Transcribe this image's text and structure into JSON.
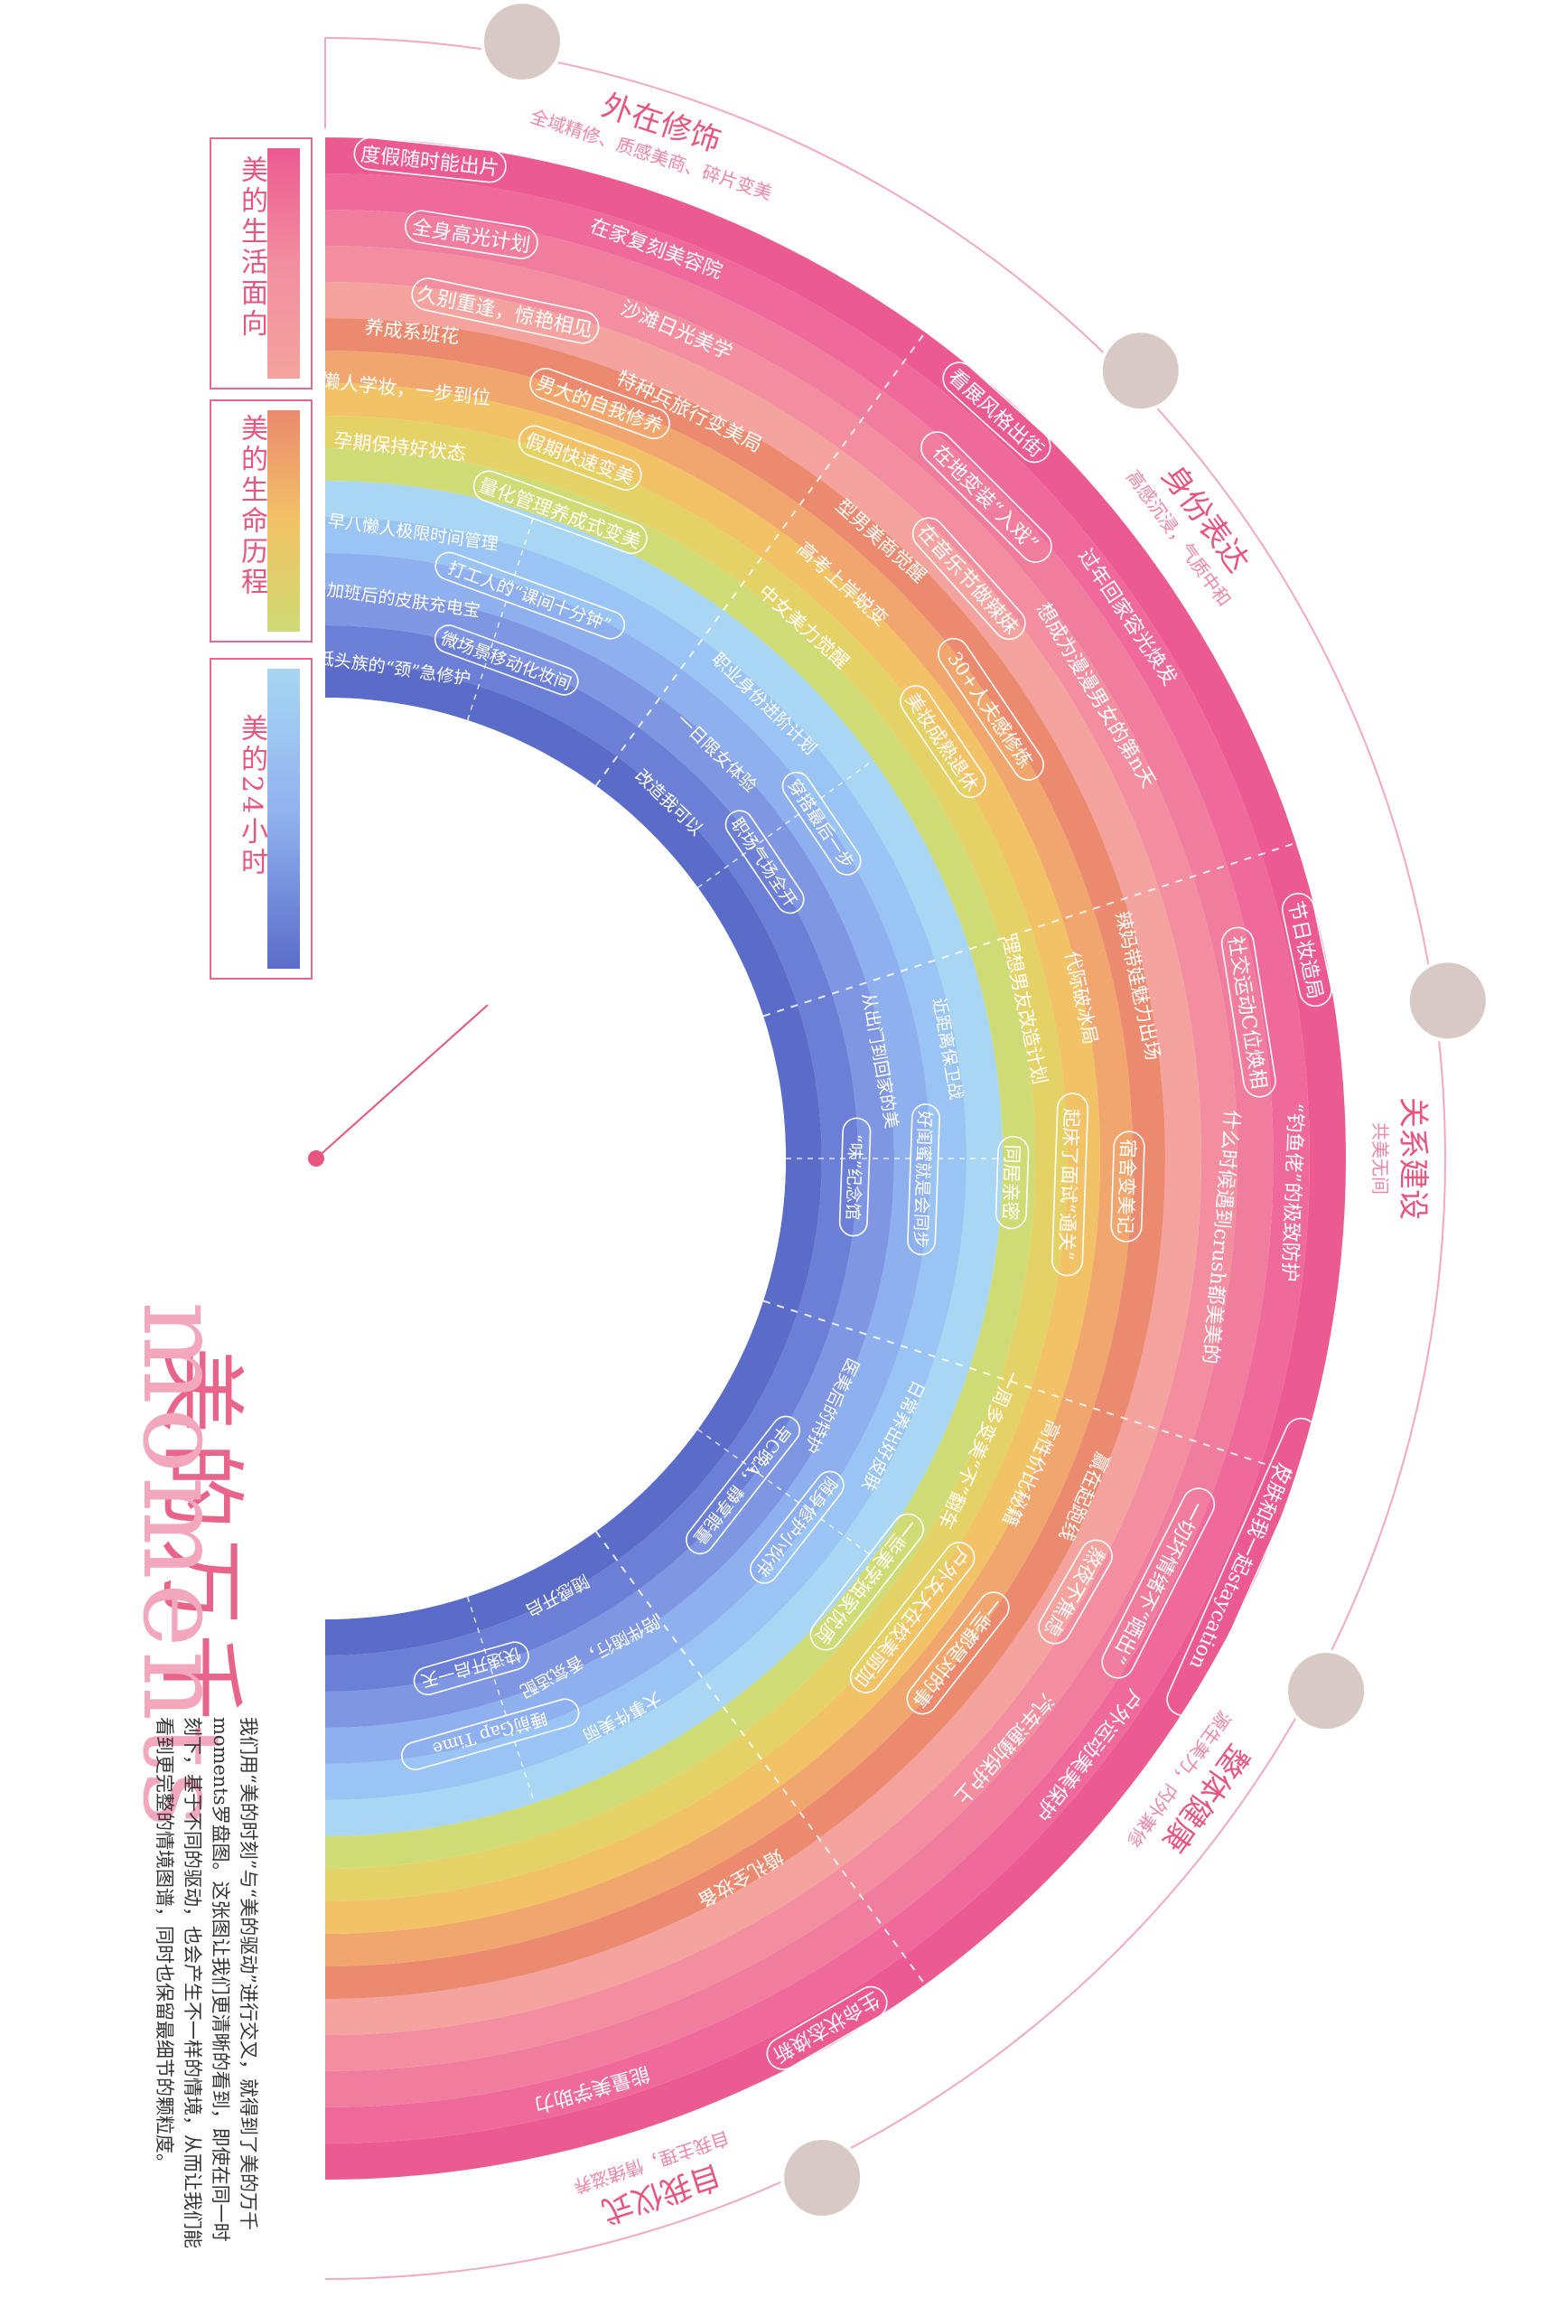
{
  "title": {
    "cn": "美的万千",
    "en": "moments"
  },
  "description": "我们用“美的时刻”与“美的驱动”进行交叉，就得到了美的万千moments罗盘图。这张图让我们更清晰的看到，即使在同一时刻下，基于不同的驱动，也会产生不一样的情境，从而让我们能看到更完整的情境图谱，同时也保留最细节的颗粒度。",
  "legend": [
    {
      "label": "美的生活面向"
    },
    {
      "label": "美的生命历程"
    },
    {
      "label": "美的24小时"
    }
  ],
  "colors": {
    "outer": [
      "#ec5a92",
      "#ef6a9b",
      "#f07c9e",
      "#f28e9f",
      "#f4a39f"
    ],
    "middle": [
      "#eb8a6e",
      "#f0a66d",
      "#f2c266",
      "#e5d266",
      "#cfdb74"
    ],
    "inner": [
      "#a8d6f3",
      "#99c4f3",
      "#8fb0ee",
      "#7f96e3",
      "#6b7fd6",
      "#5a6cc8"
    ],
    "accent": "#e8557f"
  },
  "sectors": [
    {
      "title": "外在修饰",
      "subtitle": "全域精修、质感美商、碎片变美"
    },
    {
      "title": "身份表达",
      "subtitle": "高感沉浸，气质中和"
    },
    {
      "title": "关系建设",
      "subtitle": "共美无间"
    },
    {
      "title": "整体健康",
      "subtitle": "源生美力，内外兼修"
    },
    {
      "title": "自我仪式",
      "subtitle": "自我主理，情绪滋养"
    }
  ],
  "outer_labels": [
    [
      "度假随时能出片",
      "在家复刻美容院",
      "全身高光计划",
      "沙滩日光美学",
      "久别重逢，惊艳相见",
      "特种兵旅行变美局"
    ],
    [
      "看展风格出街",
      "过年回家容光焕发",
      "在地变装“入戏”",
      "想成为漫漫男女的第n天",
      "在音乐节做辣妹"
    ],
    [
      "节日妆造局",
      "“钓鱼佬”的极致防护",
      "社交运动C位焕相",
      "什么时候遇到crush都美美的"
    ],
    [
      "皮肤和我一起staycation",
      "户外运动美美保护",
      "一切坏情绪不“晒出”",
      "汽车通勤保护上",
      "熬夜不焦虑"
    ],
    [
      "生命状态焕新",
      "能量美学助力"
    ]
  ],
  "middle_labels": [
    [
      "养成系班花",
      "男大的自我修养",
      "懒人学妆，一步到位",
      "假期快速变美",
      "孕期保持好状态",
      "量化管理养成式变美"
    ],
    [
      "型男美商觉醒",
      "30+人夫感修炼",
      "高考上岸蜕变",
      "美妆成熟退休",
      "中女美力觉醒"
    ],
    [
      "辣妈带娃魅力出场",
      "宿舍变美记",
      "代际破冰局",
      "起床了面试“通关”",
      "理想男友改造计划",
      "同居亲密"
    ],
    [
      "赢在起跑线",
      "一些都是对的事",
      "高性价比秘籍",
      "户外女大在校美丽加",
      "一周多变美“不”翻车",
      "一些美学独家优质"
    ],
    [
      "婚礼全妆备"
    ]
  ],
  "inner_labels": [
    [
      "早八懒人极限时间管理",
      "打工人的“课间十分钟”",
      "加班后的皮肤充电宝",
      "微场景移动化妆间",
      "低头族的“颈”急修护"
    ],
    [
      "职业身份进阶计划",
      "穿搭最后一步",
      "一日限女体验",
      "职场气场全开",
      "改造我可以"
    ],
    [
      "近距离保卫战",
      "好闺蜜就是会同步",
      "从出门到回家的美",
      "“味”纪念馆"
    ],
    [
      "日常养出好皮肤",
      "随身修护小伙伴",
      "医美后的特护",
      "早C晚A，静享能量"
    ],
    [
      "大事件美丽",
      "睡前Gap Time",
      "陪伴随行，香氛适配",
      "快速开启一天",
      "随感开启"
    ]
  ],
  "divider_left": "美的生活面向"
}
